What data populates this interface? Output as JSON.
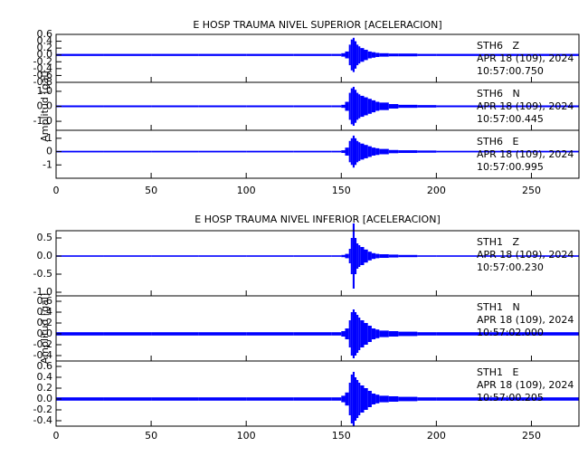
{
  "chart_data": [
    {
      "type": "waveform",
      "title": "E HOSP TRAUMA NIVEL SUPERIOR [ACELERACION]",
      "ylabel": "Amplitud [gal]",
      "xlim": [
        0,
        275
      ],
      "xticks": [
        0,
        50,
        100,
        150,
        200,
        250
      ],
      "x": [
        0,
        25,
        50,
        75,
        100,
        125,
        145,
        150,
        152,
        154,
        155,
        156,
        157,
        158,
        159,
        160,
        162,
        164,
        166,
        168,
        170,
        175,
        180,
        190,
        200,
        225,
        250
      ],
      "series": [
        {
          "name": "STH6   Z",
          "date": "APR 18 (109), 2024",
          "time": "10:57:00.750",
          "color": "#0000ff",
          "ylim": [
            -0.8,
            0.6
          ],
          "yticks": [
            -0.8,
            -0.6,
            -0.4,
            -0.2,
            {
              "value": 0,
              "label": "0.0"
            },
            0.2,
            0.4,
            0.6
          ],
          "values": [
            0.03,
            0.03,
            0.03,
            0.03,
            0.03,
            0.03,
            0.03,
            0.05,
            0.1,
            0.3,
            0.45,
            0.5,
            0.4,
            0.3,
            0.25,
            0.2,
            0.15,
            0.1,
            0.08,
            0.06,
            0.05,
            0.04,
            0.04,
            0.03,
            0.03,
            0.03,
            0.03
          ]
        },
        {
          "name": "STH6   N",
          "date": "APR 18 (109), 2024",
          "time": "10:57:00.445",
          "color": "#0000ff",
          "ylim": [
            -1.6,
            1.6
          ],
          "yticks": [
            {
              "value": -1,
              "label": "-1.0"
            },
            {
              "value": 0,
              "label": "0.0"
            },
            {
              "value": 1,
              "label": "1.0"
            }
          ],
          "values": [
            0.06,
            0.06,
            0.06,
            0.06,
            0.06,
            0.06,
            0.06,
            0.1,
            0.3,
            0.9,
            1.2,
            1.3,
            1.1,
            0.9,
            0.8,
            0.7,
            0.6,
            0.5,
            0.4,
            0.3,
            0.25,
            0.15,
            0.1,
            0.08,
            0.06,
            0.06,
            0.06
          ]
        },
        {
          "name": "STH6   E",
          "date": "APR 18 (109), 2024",
          "time": "10:57:00.995",
          "color": "#0000ff",
          "ylim": [
            -2,
            1.6
          ],
          "yticks": [
            -1,
            0,
            1
          ],
          "values": [
            0.06,
            0.06,
            0.06,
            0.06,
            0.06,
            0.06,
            0.06,
            0.1,
            0.3,
            0.8,
            1.0,
            1.2,
            1.0,
            0.8,
            0.7,
            0.6,
            0.5,
            0.4,
            0.3,
            0.25,
            0.2,
            0.12,
            0.1,
            0.08,
            0.06,
            0.06,
            0.06
          ]
        }
      ]
    },
    {
      "type": "waveform",
      "title": "E HOSP TRAUMA NIVEL INFERIOR [ACELERACION]",
      "ylabel": "Amplitud [gal]",
      "xlim": [
        0,
        275
      ],
      "xticks": [
        0,
        50,
        100,
        150,
        200,
        250
      ],
      "x": [
        0,
        25,
        50,
        75,
        100,
        125,
        145,
        150,
        152,
        154,
        155,
        156,
        157,
        158,
        159,
        160,
        162,
        164,
        166,
        168,
        170,
        175,
        180,
        190,
        200,
        225,
        250
      ],
      "series": [
        {
          "name": "STH1   Z",
          "date": "APR 18 (109), 2024",
          "time": "10:57:00.230",
          "color": "#0000ff",
          "ylim": [
            -1.1,
            0.7
          ],
          "yticks": [
            {
              "value": -1,
              "label": "-1.0"
            },
            -0.5,
            {
              "value": 0,
              "label": "0.0"
            },
            0.5
          ],
          "values": [
            0.02,
            0.02,
            0.02,
            0.02,
            0.02,
            0.02,
            0.02,
            0.03,
            0.06,
            0.2,
            0.5,
            0.9,
            0.5,
            0.35,
            0.3,
            0.25,
            0.18,
            0.12,
            0.08,
            0.06,
            0.05,
            0.04,
            0.03,
            0.02,
            0.02,
            0.02,
            0.02
          ]
        },
        {
          "name": "STH1   N",
          "date": "APR 18 (109), 2024",
          "time": "10:57:02.000",
          "color": "#0000ff",
          "ylim": [
            -0.5,
            0.7
          ],
          "yticks": [
            -0.4,
            -0.2,
            {
              "value": 0,
              "label": "0.0"
            },
            0.2,
            0.4,
            0.6
          ],
          "values": [
            0.03,
            0.03,
            0.03,
            0.03,
            0.03,
            0.03,
            0.03,
            0.05,
            0.1,
            0.25,
            0.4,
            0.45,
            0.4,
            0.35,
            0.3,
            0.25,
            0.2,
            0.15,
            0.1,
            0.08,
            0.06,
            0.05,
            0.04,
            0.03,
            0.03,
            0.03,
            0.03
          ]
        },
        {
          "name": "STH1   E",
          "date": "APR 18 (109), 2024",
          "time": "10:57:00.205",
          "color": "#0000ff",
          "ylim": [
            -0.5,
            0.7
          ],
          "yticks": [
            -0.4,
            -0.2,
            {
              "value": 0,
              "label": "0.0"
            },
            0.2,
            0.4,
            0.6
          ],
          "values": [
            0.03,
            0.03,
            0.03,
            0.03,
            0.03,
            0.03,
            0.03,
            0.06,
            0.12,
            0.3,
            0.45,
            0.5,
            0.4,
            0.35,
            0.3,
            0.25,
            0.2,
            0.15,
            0.1,
            0.08,
            0.06,
            0.05,
            0.04,
            0.03,
            0.03,
            0.03,
            0.03
          ]
        }
      ]
    }
  ]
}
